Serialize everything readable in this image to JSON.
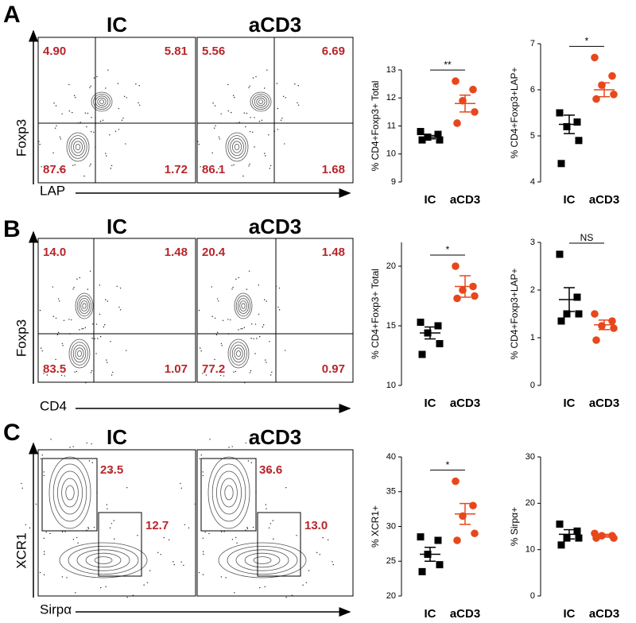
{
  "flow": [
    {
      "letter": "A",
      "y_label": "Foxp3",
      "x_label": "LAP",
      "plots": [
        {
          "title": "IC",
          "gates": [
            "4.90",
            "5.81",
            "87.6",
            "1.72"
          ]
        },
        {
          "title": "aCD3",
          "gates": [
            "5.56",
            "6.69",
            "86.1",
            "1.68"
          ]
        }
      ]
    },
    {
      "letter": "B",
      "y_label": "Foxp3",
      "x_label": "CD4",
      "plots": [
        {
          "title": "IC",
          "gates": [
            "14.0",
            "1.48",
            "83.5",
            "1.07"
          ]
        },
        {
          "title": "aCD3",
          "gates": [
            "20.4",
            "1.48",
            "77.2",
            "0.97"
          ]
        }
      ]
    },
    {
      "letter": "C",
      "y_label": "XCR1",
      "x_label": "Sirpα",
      "plots": [
        {
          "title": "IC",
          "gates": [
            "23.5",
            "12.7"
          ]
        },
        {
          "title": "aCD3",
          "gates": [
            "36.6",
            "13.0"
          ]
        }
      ]
    }
  ],
  "chart_data": [
    {
      "type": "dot",
      "y_label": "% CD4+Foxp3+ Total",
      "annotation": "**",
      "ylim": [
        9,
        13
      ],
      "yticks": [
        9,
        10,
        11,
        12,
        13
      ],
      "series": [
        {
          "name": "IC",
          "color": "#000000",
          "marker": "square",
          "values": [
            10.8,
            10.7,
            10.6,
            10.5,
            10.5
          ],
          "mean": 10.6,
          "sem": 0.06
        },
        {
          "name": "aCD3",
          "color": "#e8471c",
          "marker": "circle",
          "values": [
            12.6,
            12.3,
            11.9,
            11.5,
            11.1
          ],
          "mean": 11.8,
          "sem": 0.3
        }
      ]
    },
    {
      "type": "dot",
      "y_label": "% CD4+Foxp3+LAP+",
      "annotation": "*",
      "ylim": [
        4,
        7
      ],
      "yticks": [
        4,
        5,
        6,
        7
      ],
      "series": [
        {
          "name": "IC",
          "color": "#000000",
          "marker": "square",
          "values": [
            5.5,
            5.3,
            5.2,
            4.9,
            4.4
          ],
          "mean": 5.25,
          "sem": 0.2
        },
        {
          "name": "aCD3",
          "color": "#e8471c",
          "marker": "circle",
          "values": [
            6.7,
            6.3,
            6.1,
            5.9,
            5.8
          ],
          "mean": 6.0,
          "sem": 0.15
        }
      ]
    },
    {
      "type": "dot",
      "y_label": "% CD4+Foxp3+ Total",
      "annotation": "*",
      "ylim": [
        10,
        22
      ],
      "yticks": [
        10,
        15,
        20
      ],
      "series": [
        {
          "name": "IC",
          "color": "#000000",
          "marker": "square",
          "values": [
            15.3,
            15.0,
            14.4,
            13.5,
            12.6
          ],
          "mean": 14.4,
          "sem": 0.5
        },
        {
          "name": "aCD3",
          "color": "#e8471c",
          "marker": "circle",
          "values": [
            20.0,
            18.3,
            18.0,
            17.5,
            17.3
          ],
          "mean": 18.3,
          "sem": 0.9
        }
      ]
    },
    {
      "type": "dot",
      "y_label": "% CD4+Foxp3+LAP+",
      "annotation": "NS",
      "ylim": [
        0,
        3
      ],
      "yticks": [
        0,
        1,
        2,
        3
      ],
      "series": [
        {
          "name": "IC",
          "color": "#000000",
          "marker": "square",
          "values": [
            2.75,
            1.85,
            1.5,
            1.5,
            1.35
          ],
          "mean": 1.8,
          "sem": 0.25
        },
        {
          "name": "aCD3",
          "color": "#e8471c",
          "marker": "circle",
          "values": [
            1.5,
            1.35,
            1.25,
            1.2,
            0.95
          ],
          "mean": 1.27,
          "sem": 0.1
        }
      ]
    },
    {
      "type": "dot",
      "y_label": "% XCR1+",
      "annotation": "*",
      "ylim": [
        20,
        40
      ],
      "yticks": [
        20,
        25,
        30,
        35,
        40
      ],
      "series": [
        {
          "name": "IC",
          "color": "#000000",
          "marker": "square",
          "values": [
            28.5,
            28.0,
            26.0,
            24.5,
            23.5
          ],
          "mean": 26.0,
          "sem": 1.0
        },
        {
          "name": "aCD3",
          "color": "#e8471c",
          "marker": "circle",
          "values": [
            36.5,
            33.0,
            31.5,
            29.0,
            28.0
          ],
          "mean": 31.8,
          "sem": 1.5
        }
      ]
    },
    {
      "type": "dot",
      "y_label": "% Sirpα+",
      "ylim": [
        0,
        30
      ],
      "yticks": [
        0,
        10,
        20,
        30
      ],
      "series": [
        {
          "name": "IC",
          "color": "#000000",
          "marker": "square",
          "values": [
            15.5,
            14.0,
            12.5,
            12.5,
            11.0
          ],
          "mean": 13.3,
          "sem": 1.0
        },
        {
          "name": "aCD3",
          "color": "#e8471c",
          "marker": "circle",
          "values": [
            13.5,
            13.0,
            13.0,
            12.5,
            12.5
          ],
          "mean": 13.0,
          "sem": 0.3
        }
      ]
    }
  ]
}
